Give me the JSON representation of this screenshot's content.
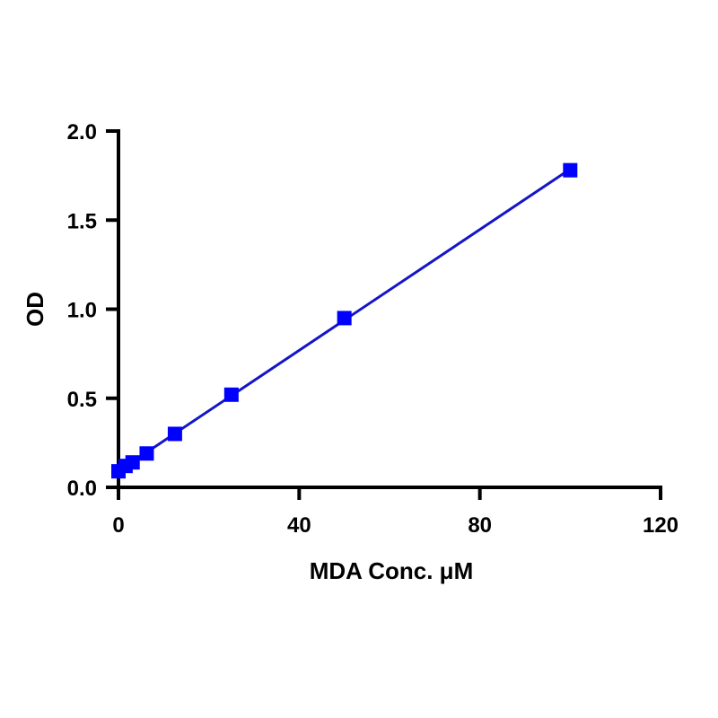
{
  "chart_data": {
    "type": "scatter",
    "title": "",
    "xlabel": "MDA Conc. μM",
    "ylabel": "OD",
    "xlim": [
      0,
      120
    ],
    "ylim": [
      0,
      2.0
    ],
    "xticks": [
      0,
      40,
      80,
      120
    ],
    "xtick_labels": [
      "0",
      "40",
      "80",
      "120"
    ],
    "yticks": [
      0.0,
      0.5,
      1.0,
      1.5,
      2.0
    ],
    "ytick_labels": [
      "0.0",
      "0.5",
      "1.0",
      "1.5",
      "2.0"
    ],
    "grid": false,
    "series": [
      {
        "marker": "square",
        "color": "#0000ff",
        "line_color": "#1515c8",
        "fit_line": true,
        "x": [
          0,
          1.56,
          3.125,
          6.25,
          12.5,
          25,
          50,
          100
        ],
        "y": [
          0.09,
          0.12,
          0.14,
          0.19,
          0.3,
          0.52,
          0.95,
          1.78
        ]
      }
    ]
  }
}
